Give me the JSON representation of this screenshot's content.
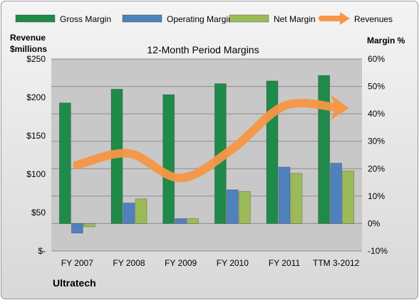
{
  "chart_data": {
    "type": "bar",
    "title": "12-Month Period Margins",
    "company": "Ultratech",
    "categories": [
      "FY 2007",
      "FY 2008",
      "FY 2009",
      "FY 2010",
      "FY 2011",
      "TTM 3-2012"
    ],
    "series": [
      {
        "name": "Gross Margin",
        "axis": "right",
        "kind": "bar",
        "color": "#1f8a4a",
        "values": [
          44,
          49,
          47,
          51,
          52,
          54
        ]
      },
      {
        "name": "Operating Margin",
        "axis": "right",
        "kind": "bar",
        "color": "#4f81bd",
        "values": [
          -3.5,
          7.5,
          1.8,
          12.3,
          20.6,
          22
        ]
      },
      {
        "name": "Net Margin",
        "axis": "right",
        "kind": "bar",
        "color": "#9bbb59",
        "values": [
          -1.2,
          9,
          1.8,
          11.7,
          18.3,
          19.2
        ]
      },
      {
        "name": "Revenues",
        "axis": "left",
        "kind": "line",
        "color": "#f79646",
        "values": [
          112,
          127,
          95,
          133,
          189,
          187
        ]
      }
    ],
    "left_axis": {
      "label_line1": "Revenue",
      "label_line2": "$millions",
      "ylim": [
        0,
        250
      ],
      "ticks": [
        {
          "v": 250,
          "label": "$250"
        },
        {
          "v": 200,
          "label": "$200"
        },
        {
          "v": 150,
          "label": "$150"
        },
        {
          "v": 100,
          "label": "$100"
        },
        {
          "v": 50,
          "label": "$50"
        },
        {
          "v": 0,
          "label": "$-"
        }
      ]
    },
    "right_axis": {
      "label": "Margin %",
      "ylim": [
        -10,
        60
      ],
      "ticks": [
        {
          "v": 60,
          "label": "60%"
        },
        {
          "v": 50,
          "label": "50%"
        },
        {
          "v": 40,
          "label": "40%"
        },
        {
          "v": 30,
          "label": "30%"
        },
        {
          "v": 20,
          "label": "20%"
        },
        {
          "v": 10,
          "label": "10%"
        },
        {
          "v": 0,
          "label": "0%"
        },
        {
          "v": -10,
          "label": "-10%"
        }
      ]
    },
    "grid": true,
    "legend_position": "top"
  }
}
